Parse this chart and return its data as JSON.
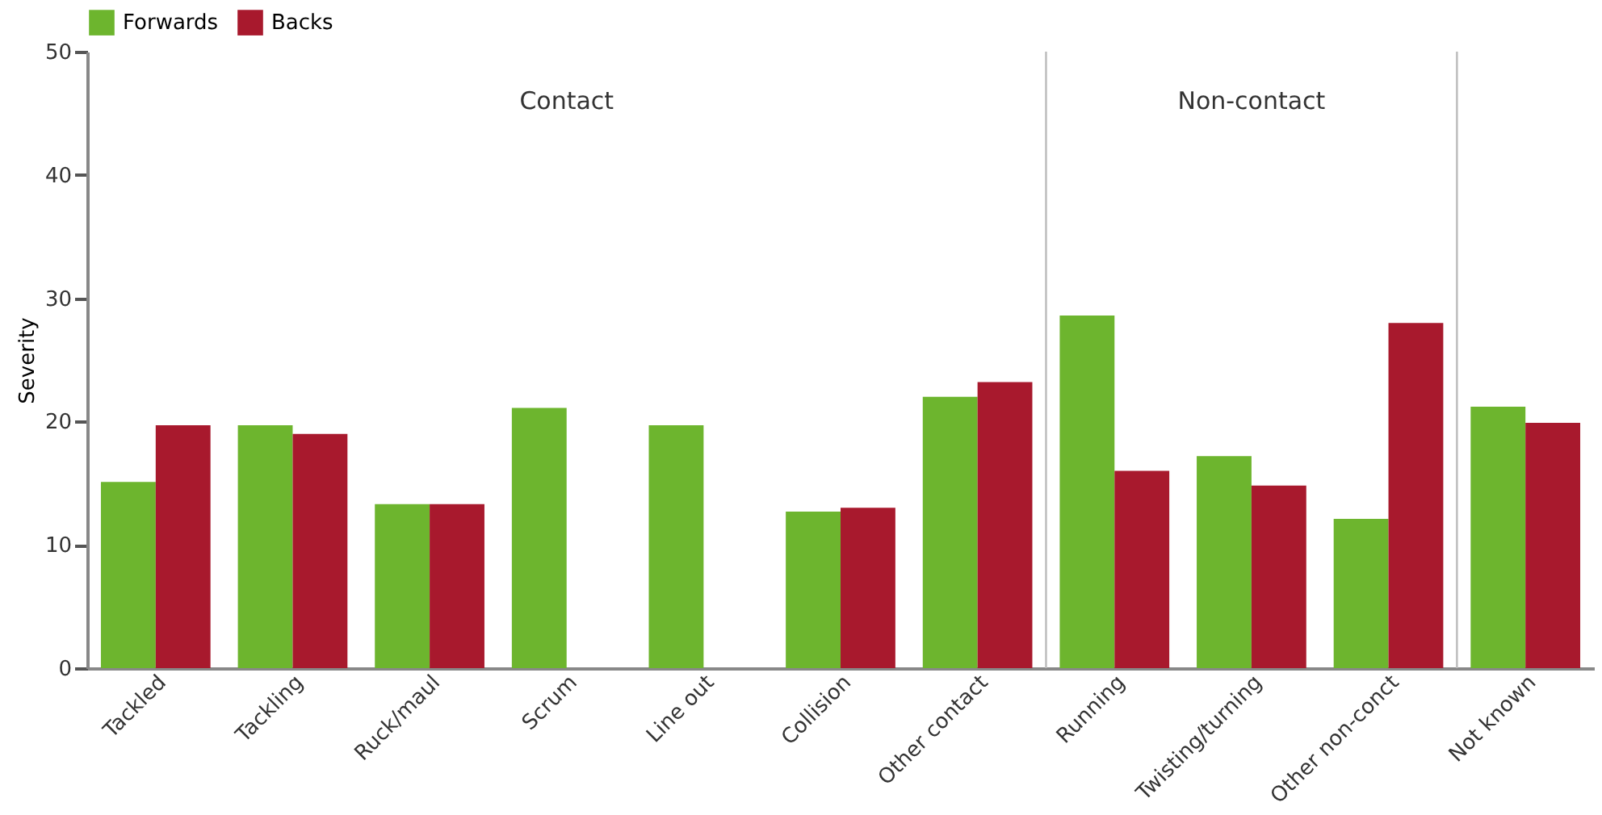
{
  "chart_data": {
    "type": "bar",
    "ylabel": "Severity",
    "categories": [
      "Tackled",
      "Tackling",
      "Ruck/maul",
      "Scrum",
      "Line out",
      "Collision",
      "Other contact",
      "Running",
      "Twisting/turning",
      "Other non-conct",
      "Not known"
    ],
    "series": [
      {
        "name": "Forwards",
        "color": "#6db52e",
        "values": [
          15.1,
          19.7,
          13.3,
          21.1,
          19.7,
          12.7,
          22.0,
          28.6,
          17.2,
          12.1,
          21.2
        ]
      },
      {
        "name": "Backs",
        "color": "#a8192d",
        "values": [
          19.7,
          19.0,
          13.3,
          null,
          null,
          13.0,
          23.2,
          16.0,
          14.8,
          28.0,
          19.9
        ]
      }
    ],
    "ylim": [
      0,
      50
    ],
    "yticks": [
      0,
      10,
      20,
      30,
      40,
      50
    ],
    "annotations": [
      "Contact",
      "Non-contact"
    ],
    "grid": false,
    "legend": "top left"
  }
}
